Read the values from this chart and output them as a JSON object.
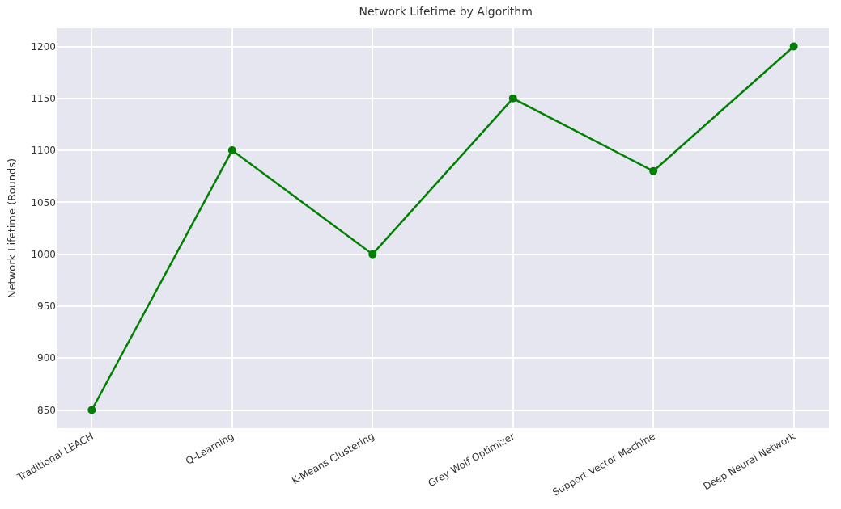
{
  "chart_data": {
    "type": "line",
    "title": "Network Lifetime by Algorithm",
    "ylabel": "Network Lifetime (Rounds)",
    "categories": [
      "Traditional LEACH",
      "Q-Learning",
      "K-Means Clustering",
      "Grey Wolf Optimizer",
      "Support Vector Machine",
      "Deep Neural Network"
    ],
    "series": [
      {
        "color": "#008000",
        "values": [
          850,
          1100,
          1000,
          1150,
          1080,
          1200
        ]
      }
    ],
    "ylim": [
      832.5,
      1217.5
    ],
    "yticks": [
      850,
      900,
      950,
      1000,
      1050,
      1100,
      1150,
      1200
    ],
    "grid": true,
    "marker": "circle",
    "line_style": "solid"
  }
}
